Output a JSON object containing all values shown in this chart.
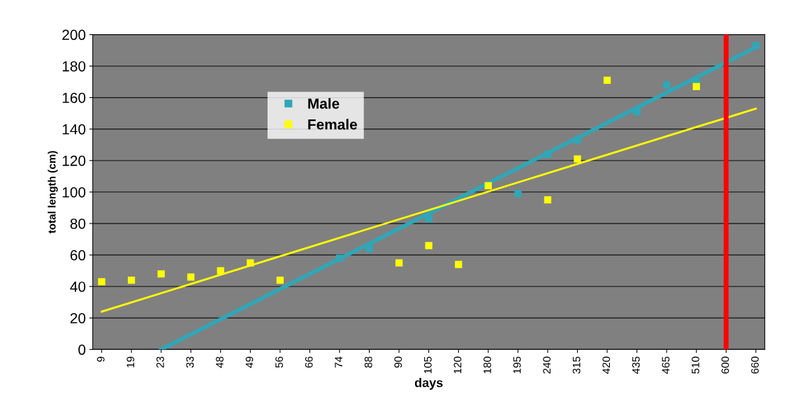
{
  "chart_data": {
    "type": "scatter",
    "xlabel": "days",
    "ylabel": "total length (cm)",
    "categories": [
      "9",
      "19",
      "23",
      "33",
      "48",
      "49",
      "56",
      "66",
      "74",
      "88",
      "90",
      "105",
      "120",
      "180",
      "195",
      "240",
      "315",
      "420",
      "435",
      "465",
      "510",
      "600",
      "660"
    ],
    "series": [
      {
        "name": "Male",
        "color": "#2fa7b8",
        "values": [
          null,
          null,
          null,
          null,
          null,
          null,
          null,
          null,
          58,
          64,
          null,
          83,
          null,
          null,
          99,
          124,
          133,
          null,
          151,
          168,
          170,
          null,
          193
        ]
      },
      {
        "name": "Female",
        "color": "#ffff00",
        "values": [
          43,
          44,
          48,
          46,
          50,
          55,
          44,
          null,
          null,
          null,
          55,
          66,
          54,
          104,
          null,
          95,
          121,
          171,
          null,
          null,
          167,
          null,
          null
        ]
      },
      {
        "type": "line",
        "marker": "none",
        "color": "#2fa7b8",
        "x": [
          "23",
          "660"
        ],
        "values": [
          0,
          192
        ]
      },
      {
        "type": "line",
        "marker": "none",
        "color": "#ffff00",
        "x": [
          "9",
          "660"
        ],
        "values": [
          24,
          153
        ]
      }
    ],
    "ylim": [
      0,
      200
    ],
    "yticks": [
      0,
      20,
      40,
      60,
      80,
      100,
      120,
      140,
      160,
      180,
      200
    ],
    "ref_lines": [
      {
        "axis": "x",
        "value": "600",
        "color": "#ff0000"
      }
    ],
    "grid": "y",
    "legend": "top left",
    "marker": "square"
  }
}
